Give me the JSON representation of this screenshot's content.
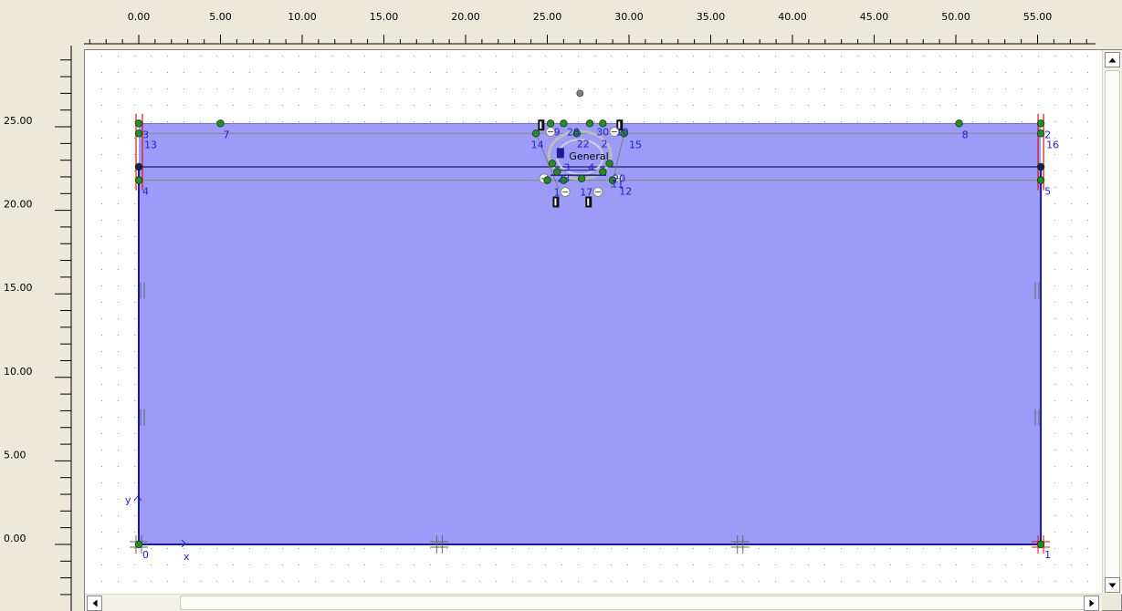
{
  "rulers": {
    "x_labels": [
      "0.00",
      "5.00",
      "10.00",
      "15.00",
      "20.00",
      "25.00",
      "30.00",
      "35.00",
      "40.00",
      "45.00",
      "50.00",
      "55.00"
    ],
    "y_labels": [
      "25.00",
      "20.00",
      "15.00",
      "10.00",
      "5.00",
      "0.00"
    ]
  },
  "model": {
    "soil_color": "#9c9cf8",
    "boundary_color": "#1a1a9a",
    "point_color": "#2a8a2a",
    "structure_label": "General",
    "axis_labels": {
      "y": "y",
      "x": "x"
    },
    "node_labels": [
      {
        "id": "n0",
        "text": "0"
      },
      {
        "id": "n1",
        "text": "1"
      },
      {
        "id": "n2",
        "text": "2"
      },
      {
        "id": "n3",
        "text": "3"
      },
      {
        "id": "n4",
        "text": "4"
      },
      {
        "id": "n5",
        "text": "5"
      },
      {
        "id": "n7",
        "text": "7"
      },
      {
        "id": "n8",
        "text": "8"
      },
      {
        "id": "n9",
        "text": "9"
      },
      {
        "id": "n10",
        "text": "10"
      },
      {
        "id": "n12",
        "text": "12"
      },
      {
        "id": "n13",
        "text": "13"
      },
      {
        "id": "n14",
        "text": "14"
      },
      {
        "id": "n15",
        "text": "15"
      },
      {
        "id": "n16",
        "text": "16"
      },
      {
        "id": "n17",
        "text": "17"
      },
      {
        "id": "n20",
        "text": "20"
      },
      {
        "id": "n22",
        "text": "22"
      },
      {
        "id": "n23",
        "text": "23"
      },
      {
        "id": "n28",
        "text": "28"
      },
      {
        "id": "n30",
        "text": "30"
      },
      {
        "id": "n11",
        "text": "11"
      },
      {
        "id": "n1b",
        "text": "1"
      },
      {
        "id": "n2b",
        "text": "2"
      },
      {
        "id": "n3b",
        "text": "3"
      },
      {
        "id": "n4b",
        "text": "4"
      }
    ]
  },
  "scrollbars": {
    "up_icon": "arrow-up-icon",
    "down_icon": "arrow-down-icon",
    "left_icon": "arrow-left-icon",
    "right_icon": "arrow-right-icon"
  }
}
